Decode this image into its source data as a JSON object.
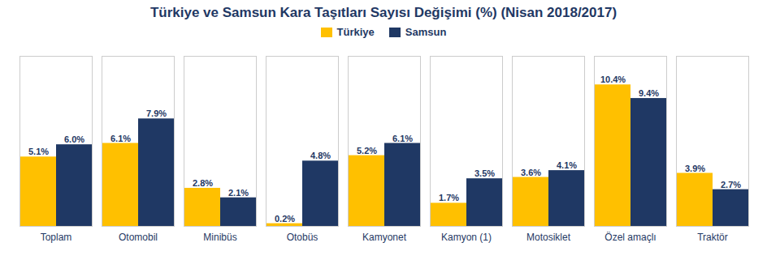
{
  "chart_data": {
    "type": "bar",
    "title": "Türkiye ve Samsun Kara Taşıtları Sayısı Değişimi (%) (Nisan 2018/2017)",
    "categories": [
      "Toplam",
      "Otomobil",
      "Minibüs",
      "Otobüs",
      "Kamyonet",
      "Kamyon (1)",
      "Motosiklet",
      "Özel amaçlı",
      "Traktör"
    ],
    "series": [
      {
        "name": "Türkiye",
        "color": "#FFC000",
        "values": [
          5.1,
          6.1,
          2.8,
          0.2,
          5.2,
          1.7,
          3.6,
          10.4,
          3.9
        ],
        "value_labels": [
          "5.1%",
          "6.1%",
          "2.8%",
          "0.2%",
          "5.2%",
          "1.7%",
          "3.6%",
          "10.4%",
          "3.9%"
        ]
      },
      {
        "name": "Samsun",
        "color": "#1F3864",
        "values": [
          6.0,
          7.9,
          2.1,
          4.8,
          6.1,
          3.5,
          4.1,
          9.4,
          2.7
        ],
        "value_labels": [
          "6.0%",
          "7.9%",
          "2.1%",
          "4.8%",
          "6.1%",
          "3.5%",
          "4.1%",
          "9.4%",
          "2.7%"
        ]
      }
    ],
    "ylim": [
      0,
      12.5
    ],
    "grid": false,
    "legend": "top",
    "data_labels": true,
    "tick_labels": "x"
  }
}
